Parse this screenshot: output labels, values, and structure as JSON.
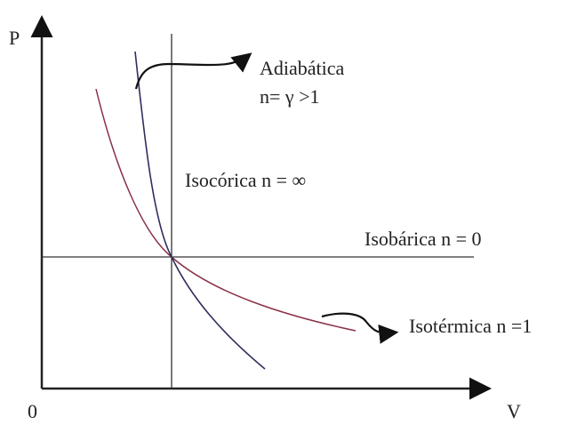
{
  "axes": {
    "y_label": "P",
    "x_label": "V",
    "origin_label": "0"
  },
  "labels": {
    "adiabatic_title": "Adiabática",
    "adiabatic_n": "n= γ >1",
    "isochoric": "Isocórica n = ∞",
    "isobaric": "Isobárica n = 0",
    "isothermal": "Isotérmica n =1"
  },
  "colors": {
    "adiabatic": "#2e2f5e",
    "isothermal": "#8a3347",
    "axes": "#222222",
    "lines": "#333333"
  }
}
